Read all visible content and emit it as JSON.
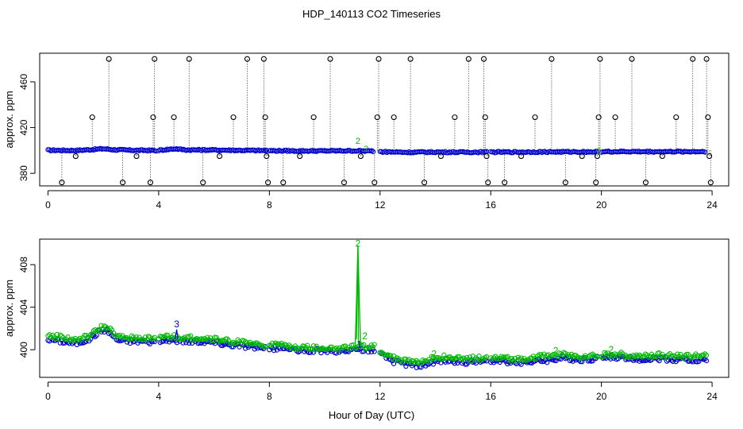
{
  "figure": {
    "title": "HDP_140113  CO2 Timeseries",
    "xlabel": "Hour of Day (UTC)"
  },
  "colors": {
    "axis": "#000000",
    "blue_points": "#0000cc",
    "green_points": "#00bb00",
    "black_points": "#000000",
    "dotted_stems": "#000000"
  },
  "chart_data": [
    {
      "type": "scatter",
      "ylabel": "approx. ppm",
      "xlim": [
        -0.3,
        24.6
      ],
      "ylim": [
        369,
        485
      ],
      "xticks": [
        0,
        4,
        8,
        12,
        16,
        20,
        24
      ],
      "yticks": [
        380,
        420,
        460
      ],
      "ytick_labels": [
        "380",
        "420",
        "460"
      ],
      "baseline": {
        "name": "CO2 (blue)",
        "color": "#0000cc",
        "segments": [
          {
            "x": [
              0.0,
              1.0,
              1.6,
              2.0,
              2.4,
              3.0,
              3.9
            ],
            "y": [
              400.2,
              400.0,
              400.8,
              401.5,
              400.6,
              400.2,
              400.0
            ]
          },
          {
            "x": [
              4.0,
              4.6,
              5.0,
              6.0,
              7.0,
              7.9
            ],
            "y": [
              400.2,
              401.5,
              400.5,
              400.4,
              400.1,
              399.9
            ]
          },
          {
            "x": [
              8.0,
              9.0,
              10.0,
              11.0,
              11.8
            ],
            "y": [
              399.8,
              399.6,
              399.6,
              399.7,
              399.4
            ]
          },
          {
            "x": [
              12.0,
              13.0,
              14.0,
              15.0,
              15.9
            ],
            "y": [
              398.9,
              398.4,
              398.6,
              398.5,
              398.6
            ]
          },
          {
            "x": [
              16.0,
              17.0,
              18.0,
              19.0,
              19.9
            ],
            "y": [
              398.5,
              398.6,
              398.7,
              398.8,
              398.8
            ]
          },
          {
            "x": [
              20.0,
              21.0,
              22.0,
              23.0,
              23.8
            ],
            "y": [
              398.9,
              399.0,
              398.9,
              399.0,
              399.0
            ]
          }
        ]
      },
      "outliers": {
        "name": "flagged points",
        "color": "#000000",
        "points": [
          {
            "x": 0.5,
            "y": 372
          },
          {
            "x": 1.0,
            "y": 395
          },
          {
            "x": 1.6,
            "y": 429
          },
          {
            "x": 2.2,
            "y": 480
          },
          {
            "x": 2.7,
            "y": 372
          },
          {
            "x": 3.2,
            "y": 395
          },
          {
            "x": 3.7,
            "y": 372
          },
          {
            "x": 3.8,
            "y": 429
          },
          {
            "x": 3.85,
            "y": 480
          },
          {
            "x": 4.55,
            "y": 429
          },
          {
            "x": 5.1,
            "y": 480
          },
          {
            "x": 5.6,
            "y": 372
          },
          {
            "x": 6.2,
            "y": 395
          },
          {
            "x": 6.7,
            "y": 429
          },
          {
            "x": 7.2,
            "y": 480
          },
          {
            "x": 7.8,
            "y": 480
          },
          {
            "x": 7.85,
            "y": 429
          },
          {
            "x": 7.9,
            "y": 395
          },
          {
            "x": 7.95,
            "y": 372
          },
          {
            "x": 8.5,
            "y": 372
          },
          {
            "x": 9.1,
            "y": 395
          },
          {
            "x": 9.6,
            "y": 429
          },
          {
            "x": 10.2,
            "y": 480
          },
          {
            "x": 10.7,
            "y": 372
          },
          {
            "x": 11.3,
            "y": 395
          },
          {
            "x": 11.8,
            "y": 372
          },
          {
            "x": 11.9,
            "y": 429
          },
          {
            "x": 11.95,
            "y": 480
          },
          {
            "x": 12.5,
            "y": 429
          },
          {
            "x": 13.1,
            "y": 480
          },
          {
            "x": 13.6,
            "y": 372
          },
          {
            "x": 14.2,
            "y": 395
          },
          {
            "x": 14.7,
            "y": 429
          },
          {
            "x": 15.2,
            "y": 480
          },
          {
            "x": 15.75,
            "y": 480
          },
          {
            "x": 15.8,
            "y": 429
          },
          {
            "x": 15.85,
            "y": 395
          },
          {
            "x": 15.9,
            "y": 372
          },
          {
            "x": 16.5,
            "y": 372
          },
          {
            "x": 17.1,
            "y": 395
          },
          {
            "x": 17.6,
            "y": 429
          },
          {
            "x": 18.2,
            "y": 480
          },
          {
            "x": 18.7,
            "y": 372
          },
          {
            "x": 19.3,
            "y": 395
          },
          {
            "x": 19.8,
            "y": 372
          },
          {
            "x": 19.85,
            "y": 395
          },
          {
            "x": 19.9,
            "y": 429
          },
          {
            "x": 19.95,
            "y": 480
          },
          {
            "x": 20.5,
            "y": 429
          },
          {
            "x": 21.1,
            "y": 480
          },
          {
            "x": 21.6,
            "y": 372
          },
          {
            "x": 22.2,
            "y": 395
          },
          {
            "x": 22.7,
            "y": 429
          },
          {
            "x": 23.3,
            "y": 480
          },
          {
            "x": 23.8,
            "y": 480
          },
          {
            "x": 23.85,
            "y": 429
          },
          {
            "x": 23.9,
            "y": 395
          },
          {
            "x": 23.95,
            "y": 372
          }
        ]
      },
      "green_marks": [
        {
          "x": 11.2,
          "y": 408.5,
          "label": "2"
        },
        {
          "x": 11.5,
          "y": 401.5,
          "label": "2"
        },
        {
          "x": 19.9,
          "y": 399.5,
          "label": "2"
        }
      ]
    },
    {
      "type": "scatter",
      "ylabel": "approx. ppm",
      "xlim": [
        -0.3,
        24.6
      ],
      "ylim": [
        397.4,
        410.4
      ],
      "xticks": [
        0,
        4,
        8,
        12,
        16,
        20,
        24
      ],
      "yticks": [
        400,
        404,
        408
      ],
      "ytick_labels": [
        "400",
        "404",
        "408"
      ],
      "series": [
        {
          "name": "blue",
          "color": "#0000cc",
          "segments": [
            {
              "x": [
                0.0,
                0.5,
                1.0,
                1.5,
                1.8,
                2.0,
                2.2,
                2.5,
                3.0,
                3.5,
                3.9
              ],
              "y": [
                401.0,
                400.8,
                400.6,
                401.0,
                401.6,
                401.9,
                401.7,
                400.9,
                400.8,
                400.8,
                400.7
              ]
            },
            {
              "x": [
                4.0,
                4.5,
                5.0,
                5.5,
                6.0,
                6.5,
                7.0,
                7.5,
                7.9
              ],
              "y": [
                400.9,
                400.9,
                400.8,
                400.8,
                400.7,
                400.5,
                400.4,
                400.2,
                400.1
              ]
            },
            {
              "x": [
                8.0,
                8.5,
                9.0,
                9.5,
                10.0,
                10.5,
                11.0,
                11.5,
                11.8
              ],
              "y": [
                400.1,
                400.2,
                399.9,
                399.9,
                399.9,
                399.8,
                400.0,
                400.0,
                400.0
              ]
            },
            {
              "x": [
                12.0,
                12.5,
                13.0,
                13.5,
                14.0,
                14.5,
                15.0,
                15.5,
                15.9
              ],
              "y": [
                399.6,
                398.9,
                398.6,
                398.5,
                398.9,
                399.0,
                398.8,
                398.9,
                398.9
              ]
            },
            {
              "x": [
                16.0,
                16.5,
                17.0,
                17.5,
                18.0,
                18.5,
                19.0,
                19.5,
                19.9
              ],
              "y": [
                398.9,
                398.9,
                398.8,
                398.9,
                399.0,
                399.2,
                399.1,
                399.1,
                399.2
              ]
            },
            {
              "x": [
                20.0,
                20.5,
                21.0,
                21.5,
                22.0,
                22.5,
                23.0,
                23.5,
                23.8
              ],
              "y": [
                399.2,
                399.3,
                399.2,
                399.1,
                399.2,
                399.1,
                399.1,
                399.0,
                399.1
              ]
            }
          ]
        },
        {
          "name": "green",
          "color": "#00bb00",
          "segments": [
            {
              "x": [
                0.0,
                0.5,
                1.0,
                1.5,
                1.8,
                2.0,
                2.2,
                2.5,
                3.0,
                3.5,
                3.9
              ],
              "y": [
                401.3,
                401.2,
                400.9,
                401.3,
                401.9,
                402.2,
                402.0,
                401.2,
                401.1,
                401.1,
                401.0
              ]
            },
            {
              "x": [
                4.0,
                4.5,
                5.0,
                5.5,
                6.0,
                6.5,
                7.0,
                7.5,
                7.9
              ],
              "y": [
                401.2,
                401.2,
                401.1,
                401.1,
                401.0,
                400.8,
                400.7,
                400.5,
                400.4
              ]
            },
            {
              "x": [
                8.0,
                8.5,
                9.0,
                9.5,
                10.0,
                10.5,
                11.0,
                11.5,
                11.8
              ],
              "y": [
                400.4,
                400.5,
                400.2,
                400.2,
                400.2,
                400.1,
                400.3,
                400.3,
                400.3
              ]
            },
            {
              "x": [
                12.0,
                12.5,
                13.0,
                13.5,
                14.0,
                14.5,
                15.0,
                15.5,
                15.9
              ],
              "y": [
                399.9,
                399.2,
                398.9,
                398.8,
                399.3,
                399.3,
                399.1,
                399.2,
                399.2
              ]
            },
            {
              "x": [
                16.0,
                16.5,
                17.0,
                17.5,
                18.0,
                18.5,
                19.0,
                19.5,
                19.9
              ],
              "y": [
                399.2,
                399.2,
                399.1,
                399.3,
                399.4,
                399.6,
                399.4,
                399.4,
                399.5
              ]
            },
            {
              "x": [
                20.0,
                20.5,
                21.0,
                21.5,
                22.0,
                22.5,
                23.0,
                23.5,
                23.8
              ],
              "y": [
                399.5,
                399.6,
                399.5,
                399.4,
                399.5,
                399.4,
                399.4,
                399.4,
                399.7
              ]
            }
          ]
        }
      ],
      "spike": {
        "name": "green spike",
        "color": "#00bb00",
        "x": [
          11.1,
          11.15,
          11.2,
          11.25,
          11.3
        ],
        "y": [
          400.2,
          404.5,
          409.8,
          404.5,
          400.2
        ]
      },
      "markers": [
        {
          "x": 11.2,
          "y": 410.0,
          "label": "2",
          "color": "#00bb00"
        },
        {
          "x": 11.45,
          "y": 401.3,
          "label": "2",
          "color": "#00bb00"
        },
        {
          "x": 11.25,
          "y": 400.5,
          "label": "1",
          "color": "#0000cc"
        },
        {
          "x": 4.65,
          "y": 402.4,
          "label": "3",
          "color": "#0000cc"
        },
        {
          "x": 13.95,
          "y": 399.6,
          "label": "2",
          "color": "#00bb00"
        },
        {
          "x": 18.35,
          "y": 399.9,
          "label": "2",
          "color": "#00bb00"
        },
        {
          "x": 20.35,
          "y": 400.0,
          "label": "2",
          "color": "#00bb00"
        }
      ]
    }
  ]
}
